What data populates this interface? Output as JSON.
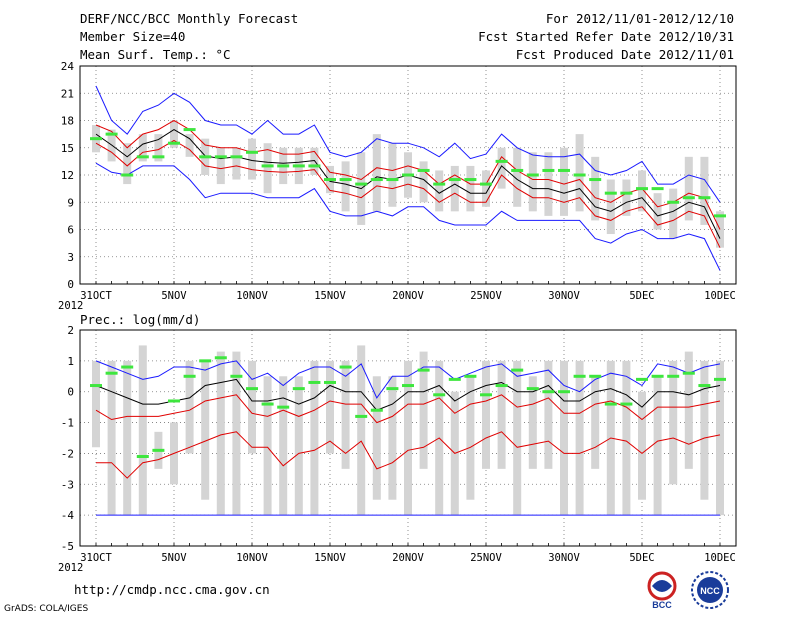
{
  "header": {
    "title": "DERF/NCC/BCC Monthly Forecast",
    "member_size": "Member Size=40",
    "variable": "Mean Surf. Temp.: °C",
    "period": "For 2012/11/01-2012/12/10",
    "started": "Fcst Started Refer Date 2012/10/31",
    "produced": "Fcst Produced Date 2012/11/01"
  },
  "footer": {
    "url": "http://cmdp.ncc.cma.gov.cn",
    "credit": "GrADS: COLA/IGES",
    "logo_bcc": "BCC",
    "logo_ncc": "NCC"
  },
  "chart_data": [
    {
      "type": "box-ensemble",
      "title": "Mean Surf. Temp.: °C",
      "x_start_day": 0,
      "x_end_day": 40,
      "xtick_days": [
        0,
        5,
        10,
        15,
        20,
        25,
        30,
        35,
        40
      ],
      "xtick_labels": [
        "31OCT",
        "5NOV",
        "10NOV",
        "15NOV",
        "20NOV",
        "25NOV",
        "30NOV",
        "5DEC",
        "10DEC"
      ],
      "year_label": "2012",
      "ylim": [
        0,
        24
      ],
      "yticks": [
        0,
        3,
        6,
        9,
        12,
        15,
        18,
        21,
        24
      ],
      "series": {
        "mean": [
          16.5,
          15.3,
          14.0,
          15.4,
          15.9,
          17.0,
          16.0,
          14.1,
          13.8,
          14.0,
          13.6,
          13.4,
          13.3,
          13.4,
          13.6,
          11.3,
          11.0,
          10.5,
          11.8,
          11.5,
          12.0,
          11.5,
          10.0,
          11.0,
          10.0,
          10.0,
          13.0,
          11.5,
          10.5,
          10.5,
          10.0,
          10.5,
          8.5,
          8.0,
          9.0,
          9.5,
          7.5,
          8.0,
          9.0,
          8.5,
          5.0
        ],
        "upper": [
          21.8,
          18.0,
          16.5,
          19.0,
          19.7,
          21.0,
          20.0,
          18.0,
          17.5,
          17.5,
          16.5,
          18.0,
          16.5,
          16.5,
          17.5,
          14.5,
          14.0,
          14.5,
          16.0,
          15.5,
          15.5,
          15.0,
          14.0,
          15.5,
          13.8,
          14.3,
          16.5,
          15.0,
          14.2,
          14.0,
          14.0,
          14.3,
          12.5,
          12.0,
          12.5,
          13.5,
          11.0,
          11.0,
          12.0,
          11.5,
          9.0
        ],
        "hi_mid": [
          17.5,
          16.8,
          15.0,
          16.5,
          17.0,
          18.0,
          17.0,
          15.3,
          15.0,
          15.0,
          14.5,
          14.8,
          14.3,
          14.3,
          14.6,
          12.3,
          12.0,
          11.5,
          12.8,
          12.5,
          13.0,
          12.5,
          11.0,
          12.0,
          11.0,
          11.0,
          14.0,
          12.5,
          11.5,
          11.5,
          11.0,
          11.5,
          9.5,
          9.0,
          10.0,
          10.5,
          8.5,
          9.0,
          10.0,
          9.5,
          6.0
        ],
        "lo_mid": [
          15.5,
          14.5,
          13.0,
          14.5,
          14.8,
          15.8,
          14.8,
          13.0,
          12.7,
          13.0,
          12.6,
          12.4,
          12.3,
          12.4,
          12.6,
          10.3,
          10.0,
          9.5,
          10.8,
          10.5,
          11.0,
          10.5,
          9.0,
          10.0,
          9.0,
          9.0,
          12.0,
          10.5,
          9.5,
          9.5,
          9.0,
          9.5,
          7.5,
          7.0,
          8.0,
          8.5,
          6.5,
          7.0,
          8.0,
          7.5,
          4.0
        ],
        "lower": [
          13.3,
          12.3,
          12.0,
          13.0,
          13.0,
          13.0,
          11.5,
          9.5,
          10.0,
          10.0,
          10.0,
          9.5,
          9.5,
          9.5,
          10.5,
          8.0,
          7.5,
          7.5,
          8.0,
          7.5,
          8.5,
          8.5,
          7.0,
          6.5,
          6.5,
          6.5,
          8.0,
          7.0,
          7.0,
          7.0,
          7.0,
          7.0,
          5.0,
          4.5,
          5.5,
          6.0,
          5.0,
          5.0,
          5.5,
          5.0,
          1.5
        ],
        "box_low": [
          14.5,
          13.5,
          11.0,
          13.5,
          13.5,
          15.0,
          14.0,
          12.0,
          11.0,
          11.5,
          11.5,
          10.0,
          11.0,
          11.0,
          12.0,
          10.0,
          8.0,
          6.5,
          8.0,
          8.5,
          9.5,
          9.0,
          8.0,
          8.0,
          8.0,
          8.5,
          10.5,
          8.5,
          8.0,
          7.5,
          7.5,
          8.0,
          7.0,
          5.5,
          7.5,
          8.0,
          6.0,
          5.0,
          7.0,
          6.5,
          4.0
        ],
        "box_high": [
          17.5,
          17.0,
          15.5,
          16.5,
          16.5,
          18.0,
          16.5,
          16.0,
          15.0,
          15.0,
          16.0,
          15.5,
          15.0,
          15.0,
          15.0,
          13.0,
          13.5,
          14.5,
          16.5,
          15.5,
          14.5,
          13.5,
          12.5,
          13.0,
          13.0,
          12.5,
          15.0,
          15.0,
          14.5,
          14.5,
          15.0,
          16.5,
          14.0,
          11.5,
          11.5,
          12.5,
          10.0,
          10.5,
          14.0,
          14.0,
          8.0
        ],
        "observed": [
          16.0,
          16.5,
          12.0,
          14.0,
          14.0,
          15.5,
          17.0,
          14.0,
          14.0,
          14.0,
          14.5,
          13.0,
          13.0,
          13.0,
          13.0,
          11.5,
          11.5,
          11.0,
          11.5,
          11.5,
          12.0,
          12.5,
          11.0,
          11.5,
          11.5,
          11.0,
          13.5,
          12.5,
          12.0,
          12.5,
          12.5,
          12.0,
          11.5,
          10.0,
          10.0,
          10.5,
          10.5,
          9.0,
          9.5,
          9.5,
          7.5
        ]
      }
    },
    {
      "type": "box-ensemble",
      "title": "Prec.: log(mm/d)",
      "x_start_day": 0,
      "x_end_day": 40,
      "xtick_days": [
        0,
        5,
        10,
        15,
        20,
        25,
        30,
        35,
        40
      ],
      "xtick_labels": [
        "31OCT",
        "5NOV",
        "10NOV",
        "15NOV",
        "20NOV",
        "25NOV",
        "30NOV",
        "5DEC",
        "10DEC"
      ],
      "year_label": "2012",
      "ylim": [
        -5,
        2
      ],
      "yticks": [
        -5,
        -4,
        -3,
        -2,
        -1,
        0,
        1,
        2
      ],
      "series": {
        "mean": [
          0.2,
          0.0,
          -0.2,
          -0.4,
          -0.4,
          -0.3,
          -0.2,
          0.2,
          0.3,
          0.4,
          -0.3,
          -0.3,
          -0.2,
          -0.4,
          -0.2,
          0.2,
          0.0,
          0.0,
          -0.6,
          -0.4,
          0.0,
          0.0,
          0.2,
          -0.3,
          0.0,
          0.2,
          0.3,
          0.0,
          0.0,
          0.2,
          -0.3,
          -0.3,
          0.0,
          0.1,
          -0.1,
          -0.5,
          0.0,
          0.0,
          -0.1,
          0.1,
          0.2
        ],
        "upper": [
          1.0,
          0.8,
          0.6,
          0.4,
          0.5,
          0.8,
          0.8,
          0.7,
          0.9,
          1.0,
          0.4,
          0.6,
          0.2,
          0.6,
          0.8,
          0.8,
          0.5,
          0.9,
          -0.2,
          0.5,
          0.5,
          0.8,
          0.8,
          0.4,
          0.6,
          0.8,
          0.9,
          0.5,
          0.6,
          0.7,
          0.2,
          0.0,
          0.4,
          0.6,
          0.5,
          0.2,
          0.9,
          0.8,
          0.6,
          0.8,
          0.9
        ],
        "hi_mid": [
          -0.6,
          -0.9,
          -0.8,
          -0.8,
          -0.8,
          -0.7,
          -0.6,
          -0.3,
          -0.2,
          -0.1,
          -0.7,
          -0.8,
          -0.6,
          -0.8,
          -0.6,
          -0.3,
          -0.4,
          -0.4,
          -1.0,
          -0.8,
          -0.4,
          -0.4,
          -0.2,
          -0.7,
          -0.4,
          -0.3,
          -0.1,
          -0.5,
          -0.4,
          -0.2,
          -0.7,
          -0.7,
          -0.4,
          -0.3,
          -0.5,
          -0.9,
          -0.5,
          -0.5,
          -0.5,
          -0.4,
          -0.3
        ],
        "lo_mid": [
          -2.3,
          -2.3,
          -2.8,
          -2.3,
          -2.2,
          -2.0,
          -1.8,
          -1.6,
          -1.4,
          -1.3,
          -1.8,
          -1.8,
          -2.4,
          -2.0,
          -1.9,
          -1.6,
          -2.0,
          -1.6,
          -2.5,
          -2.3,
          -1.9,
          -1.8,
          -1.5,
          -2.0,
          -1.8,
          -1.5,
          -1.3,
          -1.8,
          -1.7,
          -1.6,
          -2.0,
          -2.0,
          -1.8,
          -1.5,
          -1.6,
          -2.0,
          -1.6,
          -1.5,
          -1.7,
          -1.5,
          -1.4
        ],
        "lower": [
          -4,
          -4,
          -4,
          -4,
          -4,
          -4,
          -4,
          -4,
          -4,
          -4,
          -4,
          -4,
          -4,
          -4,
          -4,
          -4,
          -4,
          -4,
          -4,
          -4,
          -4,
          -4,
          -4,
          -4,
          -4,
          -4,
          -4,
          -4,
          -4,
          -4,
          -4,
          -4,
          -4,
          -4,
          -4,
          -4,
          -4,
          -4,
          -4,
          -4,
          -4
        ],
        "box_low": [
          -1.8,
          -4.0,
          -4.0,
          -4.0,
          -2.5,
          -3.0,
          -2.0,
          -3.5,
          -4.0,
          -4.0,
          -2.0,
          -4.0,
          -4.0,
          -4.0,
          -4.0,
          -2.0,
          -2.5,
          -4.0,
          -3.5,
          -3.5,
          -4.0,
          -2.5,
          -4.0,
          -4.0,
          -3.5,
          -2.5,
          -2.5,
          -4.0,
          -2.5,
          -2.5,
          -4.0,
          -4.0,
          -2.5,
          -4.0,
          -4.0,
          -3.5,
          -4.0,
          -3.0,
          -2.5,
          -3.5,
          -4.0
        ],
        "box_high": [
          1.0,
          1.0,
          1.0,
          1.5,
          -1.3,
          -1.0,
          1.0,
          1.0,
          1.3,
          1.3,
          1.0,
          0.5,
          0.5,
          0.5,
          1.0,
          1.0,
          1.0,
          1.5,
          0.5,
          0.5,
          1.0,
          1.3,
          1.0,
          0.0,
          0.5,
          1.0,
          1.0,
          1.0,
          0.5,
          1.0,
          1.0,
          1.0,
          0.5,
          1.0,
          1.0,
          0.0,
          0.5,
          1.0,
          1.3,
          1.0,
          1.0
        ],
        "observed": [
          0.2,
          0.6,
          0.8,
          -2.1,
          -1.9,
          -0.3,
          0.5,
          1.0,
          1.1,
          0.5,
          0.1,
          -0.4,
          -0.5,
          0.1,
          0.3,
          0.3,
          0.8,
          -0.8,
          -0.6,
          0.1,
          0.2,
          0.7,
          -0.1,
          0.4,
          0.5,
          -0.1,
          0.2,
          0.7,
          0.1,
          0.0,
          0.0,
          0.5,
          0.5,
          -0.4,
          -0.4,
          0.4,
          0.5,
          0.5,
          0.6,
          0.2,
          0.4
        ]
      }
    }
  ]
}
